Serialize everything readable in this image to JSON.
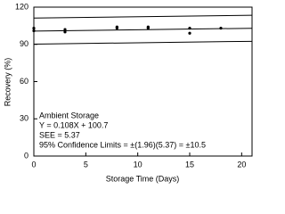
{
  "chart_data": {
    "type": "scatter",
    "x_label": "Storage Time (Days)",
    "y_label": "Recovery (%)",
    "x": [
      0,
      0,
      3,
      3,
      8,
      8,
      11,
      11,
      15,
      15,
      18
    ],
    "values": [
      101,
      103,
      100,
      102,
      103,
      104,
      104,
      103,
      99,
      103,
      103
    ],
    "color": "#000000",
    "lines": [
      {
        "x": [
          0,
          21
        ],
        "values": [
          111.2,
          113.47
        ]
      },
      {
        "x": [
          0,
          21
        ],
        "values": [
          100.7,
          102.97
        ]
      },
      {
        "x": [
          0,
          21
        ],
        "values": [
          90.2,
          92.47
        ]
      }
    ],
    "annotations": [
      "Ambient Storage",
      "Y = 0.108X + 100.7",
      "SEE =  5.37",
      "95% Confidence Limits =  ±(1.96)(5.37) =  ±10.5"
    ],
    "xlim": [
      0,
      21
    ],
    "xticks": [
      0,
      5,
      10,
      15,
      20
    ],
    "ylim": [
      0,
      120
    ],
    "yticks": [
      0,
      30,
      60,
      90,
      120
    ],
    "grid": false
  }
}
